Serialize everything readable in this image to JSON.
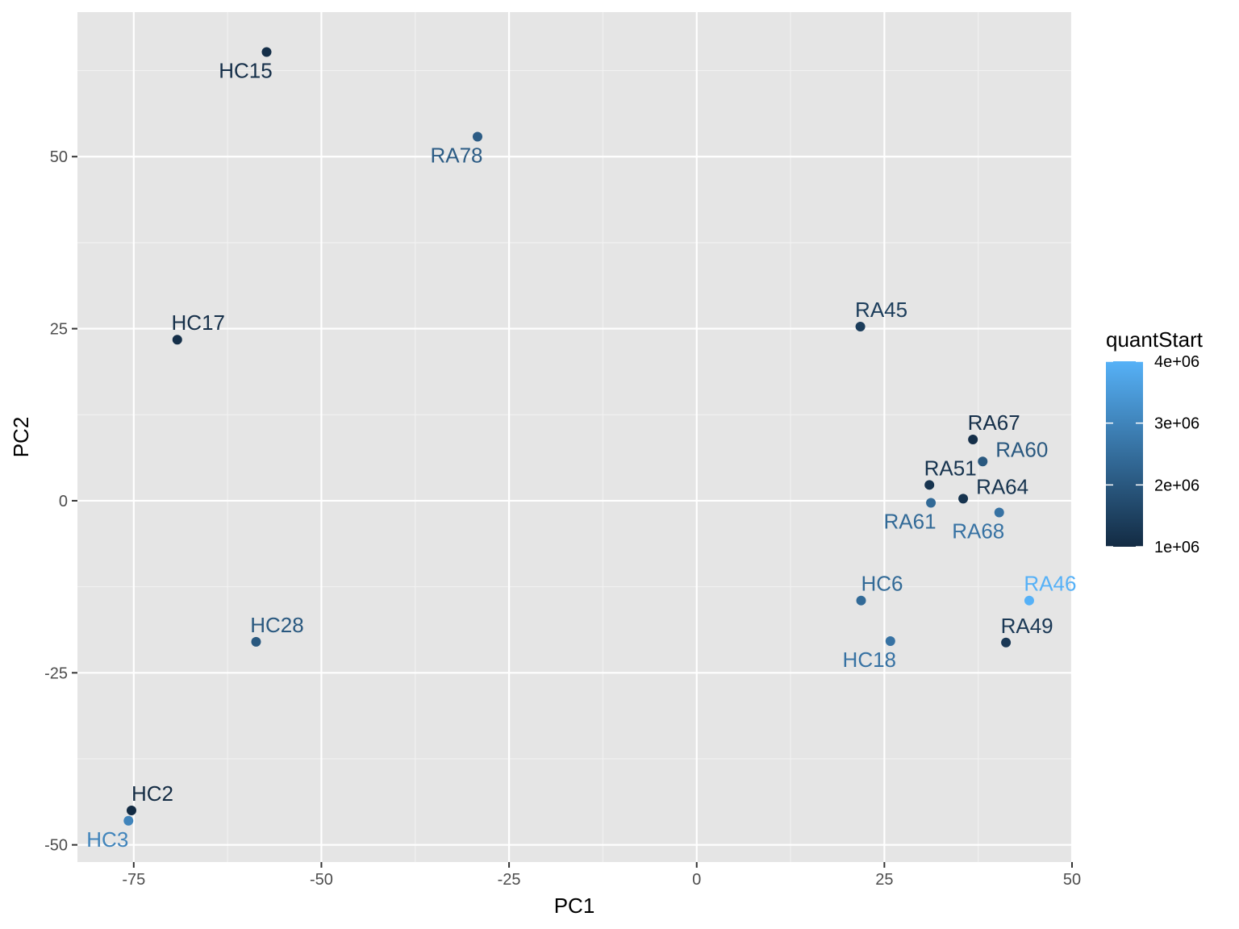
{
  "chart_data": {
    "type": "scatter",
    "xlabel": "PC1",
    "ylabel": "PC2",
    "xlim": [
      -82.5,
      50
    ],
    "ylim": [
      -52.5,
      71
    ],
    "x_ticks": [
      -75,
      -50,
      -25,
      0,
      25,
      50
    ],
    "x_tick_labels": [
      "-75",
      "-50",
      "-25",
      "0",
      "25",
      "50"
    ],
    "y_ticks": [
      -50,
      -25,
      0,
      25,
      50
    ],
    "y_tick_labels": [
      "-50",
      "-25",
      "0",
      "25",
      "50"
    ],
    "grid": true,
    "panel_background": "#e5e5e5",
    "color_scale": {
      "title": "quantStart",
      "min": 1000000,
      "max": 4000000,
      "low_color": "#132b43",
      "high_color": "#56b1f7",
      "ticks": [
        1000000,
        2000000,
        3000000,
        4000000
      ],
      "tick_labels": [
        "1e+06",
        "2e+06",
        "3e+06",
        "4e+06"
      ],
      "legend_position": "right"
    },
    "points": [
      {
        "label": "HC15",
        "x": -57.3,
        "y": 65.2,
        "quantStart": 1100000,
        "label_pos": "below"
      },
      {
        "label": "RA78",
        "x": -29.2,
        "y": 52.9,
        "quantStart": 2100000,
        "label_pos": "below"
      },
      {
        "label": "HC17",
        "x": -69.2,
        "y": 23.4,
        "quantStart": 1100000,
        "label_pos": "above"
      },
      {
        "label": "RA45",
        "x": 21.8,
        "y": 25.3,
        "quantStart": 1400000,
        "label_pos": "above"
      },
      {
        "label": "RA67",
        "x": 36.8,
        "y": 8.9,
        "quantStart": 1100000,
        "label_pos": "above"
      },
      {
        "label": "RA60",
        "x": 38.1,
        "y": 5.7,
        "quantStart": 2000000,
        "label_pos": "right"
      },
      {
        "label": "RA51",
        "x": 31.0,
        "y": 2.3,
        "quantStart": 1200000,
        "label_pos": "above"
      },
      {
        "label": "RA64",
        "x": 35.5,
        "y": 0.3,
        "quantStart": 1200000,
        "label_pos": "right"
      },
      {
        "label": "RA61",
        "x": 31.2,
        "y": -0.3,
        "quantStart": 2400000,
        "label_pos": "below"
      },
      {
        "label": "RA68",
        "x": 40.3,
        "y": -1.7,
        "quantStart": 2600000,
        "label_pos": "below"
      },
      {
        "label": "HC6",
        "x": 21.9,
        "y": -14.5,
        "quantStart": 2400000,
        "label_pos": "above"
      },
      {
        "label": "RA46",
        "x": 44.3,
        "y": -14.5,
        "quantStart": 4000000,
        "label_pos": "above"
      },
      {
        "label": "HC28",
        "x": -58.7,
        "y": -20.5,
        "quantStart": 2000000,
        "label_pos": "above"
      },
      {
        "label": "HC18",
        "x": 25.8,
        "y": -20.4,
        "quantStart": 2600000,
        "label_pos": "below"
      },
      {
        "label": "RA49",
        "x": 41.2,
        "y": -20.6,
        "quantStart": 1300000,
        "label_pos": "above"
      },
      {
        "label": "HC2",
        "x": -75.3,
        "y": -45.0,
        "quantStart": 1000000,
        "label_pos": "above"
      },
      {
        "label": "HC3",
        "x": -75.7,
        "y": -46.5,
        "quantStart": 3000000,
        "label_pos": "below"
      }
    ]
  }
}
